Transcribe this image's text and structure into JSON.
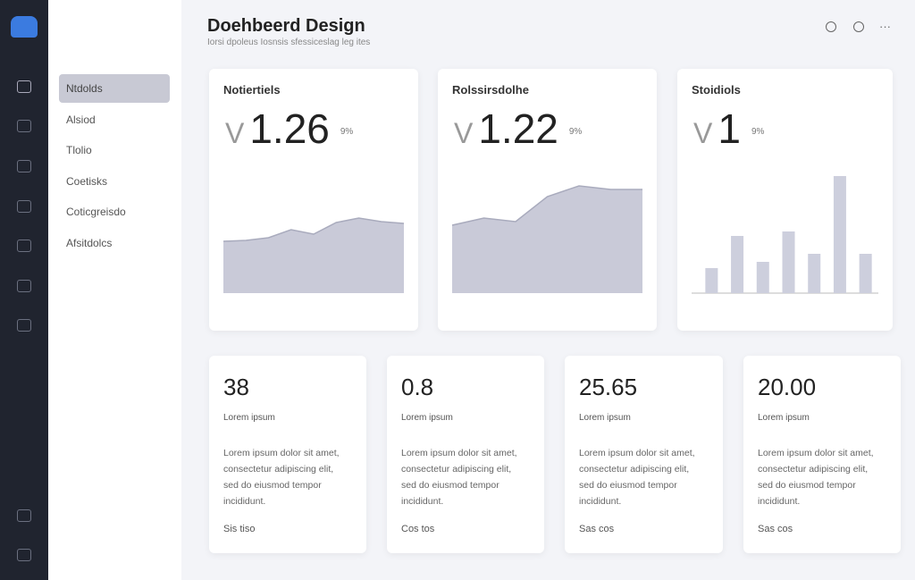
{
  "header": {
    "title": "Doehbeerd Design",
    "subtitle": "Iorsi dpoleus Iosnsis sfessiceslag leg ites"
  },
  "sidebar": {
    "items": [
      "Ntdolds",
      "Alsiod",
      "Tlolio",
      "Coetisks",
      "Coticgreisdo",
      "Afsitdolcs"
    ]
  },
  "cards": [
    {
      "title": "Notiertiels",
      "prefix": "V",
      "value": "1.26",
      "unit": "9%",
      "chart_data": {
        "type": "area",
        "values": [
          58,
          59,
          62,
          71,
          66,
          79,
          84,
          80,
          78
        ],
        "ylim": [
          0,
          140
        ],
        "color": "#c9cad8"
      }
    },
    {
      "title": "Rolssirsdolhe",
      "prefix": "V",
      "value": "1.22",
      "unit": "9%",
      "chart_data": {
        "type": "area",
        "values": [
          76,
          84,
          80,
          108,
          120,
          116,
          116
        ],
        "ylim": [
          0,
          140
        ],
        "color": "#c9cad8"
      }
    },
    {
      "title": "Stoidiols",
      "prefix": "V",
      "value": "1",
      "unit": "9%",
      "chart_data": {
        "type": "bar",
        "values": [
          28,
          64,
          35,
          69,
          44,
          131,
          44
        ],
        "ylim": [
          0,
          140
        ],
        "color": "#cdcfdd"
      }
    }
  ],
  "stats": [
    {
      "value": "38",
      "label": "Lorem ipsum",
      "text": "Lorem ipsum dolor sit amet, consectetur adipiscing elit, sed do eiusmod tempor incididunt.",
      "link": "Sis tiso"
    },
    {
      "value": "0.8",
      "label": "Lorem ipsum",
      "text": "Lorem ipsum dolor sit amet, consectetur adipiscing elit, sed do eiusmod tempor incididunt.",
      "link": "Cos tos"
    },
    {
      "value": "25.65",
      "label": "Lorem ipsum",
      "text": "Lorem ipsum dolor sit amet, consectetur adipiscing elit, sed do eiusmod tempor incididunt.",
      "link": "Sas cos"
    },
    {
      "value": "20.00",
      "label": "Lorem ipsum",
      "text": "Lorem ipsum dolor sit amet, consectetur adipiscing elit, sed do eiusmod tempor incididunt.",
      "link": "Sas cos"
    }
  ]
}
